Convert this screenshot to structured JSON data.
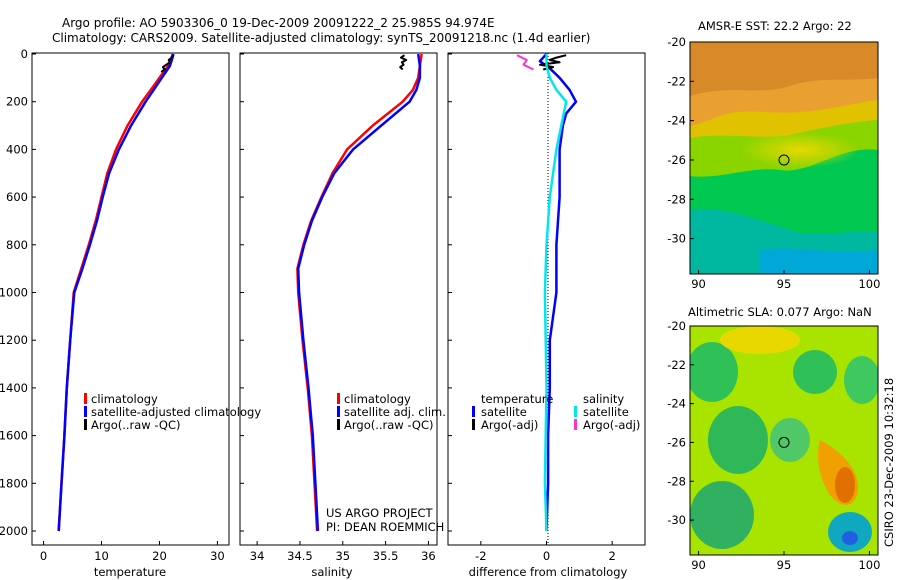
{
  "header": {
    "title_line1": "Argo profile: AO 5903306_0 19-Dec-2009 20091222_2 25.985S 94.974E",
    "title_line2": "Climatology: CARS2009. Satellite-adjusted climatology: synTS_20091218.nc (1.4d earlier)"
  },
  "colors": {
    "climatology": "#ff0000",
    "satellite": "#0000ff",
    "argo": "#000000",
    "cyan": "#00e5ee",
    "magenta": "#ff33cc"
  },
  "chart_data": [
    {
      "type": "line",
      "name": "temperature",
      "xlabel": "temperature",
      "ylabel": "",
      "xlim": [
        -2,
        32
      ],
      "ylim": [
        2050,
        0
      ],
      "x_ticks": [
        "0",
        "10",
        "20",
        "30"
      ],
      "y_ticks": [
        "0",
        "200",
        "400",
        "600",
        "800",
        "1000",
        "1200",
        "1400",
        "1600",
        "1800",
        "2000"
      ],
      "legend": [
        "climatology",
        "satellite-adjusted climatology",
        "Argo(..raw -QC)"
      ],
      "series": [
        {
          "name": "climatology",
          "depth": [
            0,
            20,
            50,
            100,
            150,
            200,
            300,
            400,
            500,
            600,
            700,
            800,
            900,
            1000,
            1200,
            1400,
            1600,
            1800,
            2000
          ],
          "values": [
            22.3,
            22.0,
            21.5,
            20.0,
            18.5,
            17.0,
            14.5,
            12.5,
            11.0,
            10.0,
            9.0,
            7.8,
            6.5,
            5.2,
            4.6,
            4.0,
            3.6,
            3.1,
            2.6
          ]
        },
        {
          "name": "satellite-adjusted climatology",
          "depth": [
            0,
            20,
            50,
            100,
            150,
            200,
            300,
            400,
            500,
            600,
            700,
            800,
            900,
            1000,
            1200,
            1400,
            1600,
            1800,
            2000
          ],
          "values": [
            22.4,
            22.2,
            21.8,
            20.4,
            19.0,
            17.6,
            15.1,
            13.0,
            11.3,
            10.2,
            9.2,
            8.0,
            6.7,
            5.3,
            4.6,
            4.0,
            3.6,
            3.1,
            2.6
          ]
        },
        {
          "name": "Argo(..raw -QC)",
          "depth": [
            5,
            15,
            25,
            35,
            45,
            55,
            65,
            75
          ],
          "values": [
            22.4,
            22.1,
            21.6,
            21.8,
            21.2,
            20.6,
            20.9,
            20.3
          ]
        }
      ]
    },
    {
      "type": "line",
      "name": "salinity",
      "xlabel": "salinity",
      "ylabel": "",
      "xlim": [
        33.8,
        36.1
      ],
      "ylim": [
        2050,
        0
      ],
      "x_ticks": [
        "34",
        "34.5",
        "35",
        "35.5",
        "36"
      ],
      "legend": [
        "climatology",
        "satellite adj. clim.",
        "Argo(..raw -QC)"
      ],
      "series": [
        {
          "name": "climatology",
          "depth": [
            0,
            50,
            100,
            150,
            200,
            300,
            400,
            500,
            600,
            700,
            800,
            900,
            1000,
            1200,
            1400,
            1600,
            1800,
            2000
          ],
          "values": [
            35.92,
            35.9,
            35.88,
            35.82,
            35.7,
            35.35,
            35.05,
            34.88,
            34.75,
            34.63,
            34.54,
            34.47,
            34.48,
            34.53,
            34.59,
            34.64,
            34.67,
            34.7
          ]
        },
        {
          "name": "satellite adj. clim.",
          "depth": [
            0,
            50,
            100,
            150,
            200,
            300,
            400,
            500,
            600,
            700,
            800,
            900,
            1000,
            1200,
            1400,
            1600,
            1800,
            2000
          ],
          "values": [
            35.88,
            35.9,
            35.9,
            35.86,
            35.78,
            35.45,
            35.12,
            34.9,
            34.76,
            34.64,
            34.55,
            34.48,
            34.49,
            34.54,
            34.6,
            34.65,
            34.68,
            34.71
          ]
        },
        {
          "name": "Argo(..raw -QC)",
          "depth": [
            5,
            15,
            25,
            35,
            45,
            55,
            65
          ],
          "values": [
            35.72,
            35.68,
            35.74,
            35.69,
            35.71,
            35.67,
            35.7
          ]
        }
      ]
    },
    {
      "type": "line",
      "name": "difference",
      "xlabel": "difference from climatology",
      "ylabel": "",
      "xlim": [
        -3,
        3
      ],
      "ylim": [
        2050,
        0
      ],
      "x_ticks": [
        "-2",
        "0",
        "2"
      ],
      "legend_titles": [
        "temperature",
        "salinity"
      ],
      "legend": [
        "satellite",
        "Argo(-adj)",
        "satellite",
        "Argo(-adj)"
      ],
      "series": [
        {
          "name": "temperature satellite",
          "depth": [
            0,
            30,
            60,
            100,
            150,
            200,
            250,
            300,
            400,
            500,
            600,
            800,
            1000,
            1200,
            1400,
            1600,
            1800,
            2000
          ],
          "values": [
            0.0,
            -0.2,
            0.1,
            0.4,
            0.7,
            0.9,
            0.6,
            0.5,
            0.4,
            0.4,
            0.4,
            0.3,
            0.3,
            0.1,
            0.1,
            0.05,
            0.05,
            0.0
          ]
        },
        {
          "name": "temperature Argo(-adj)",
          "depth": [
            5,
            15,
            25,
            35,
            45,
            55,
            65
          ],
          "values": [
            0.6,
            0.3,
            0.1,
            0.4,
            -0.2,
            0.2,
            -0.1
          ]
        },
        {
          "name": "salinity satellite",
          "depth": [
            0,
            50,
            100,
            150,
            200,
            300,
            400,
            600,
            800,
            1000,
            1400,
            1800,
            2000
          ],
          "values": [
            0.0,
            0.0,
            0.1,
            0.3,
            0.6,
            0.45,
            0.3,
            0.1,
            0.0,
            -0.05,
            0.0,
            -0.05,
            0.0
          ]
        },
        {
          "name": "salinity Argo(-adj)",
          "depth": [
            5,
            25,
            45,
            65
          ],
          "values": [
            -0.9,
            -0.6,
            -0.7,
            -0.4
          ]
        }
      ]
    },
    {
      "type": "heatmap",
      "name": "AMSR-E SST",
      "title": "AMSR-E SST: 22.2 Argo: 22",
      "xlim": [
        89.5,
        100.5
      ],
      "ylim": [
        -31.8,
        -20
      ],
      "x_ticks": [
        "90",
        "95",
        "100"
      ],
      "y_ticks": [
        "-20",
        "-22",
        "-24",
        "-26",
        "-28",
        "-30"
      ],
      "marker": [
        95,
        -26
      ]
    },
    {
      "type": "heatmap",
      "name": "Altimetric SLA",
      "title": "Altimetric SLA: 0.077 Argo: NaN",
      "xlim": [
        89.5,
        100.5
      ],
      "ylim": [
        -31.8,
        -20
      ],
      "x_ticks": [
        "90",
        "95",
        "100"
      ],
      "y_ticks": [
        "-20",
        "-22",
        "-24",
        "-26",
        "-28",
        "-30"
      ],
      "marker": [
        95,
        -26
      ]
    }
  ],
  "annotations": {
    "project_line1": "US ARGO PROJECT",
    "project_line2": "PI: DEAN ROEMMICH",
    "credit": "CSIRO 23-Dec-2009 10:32:18"
  }
}
